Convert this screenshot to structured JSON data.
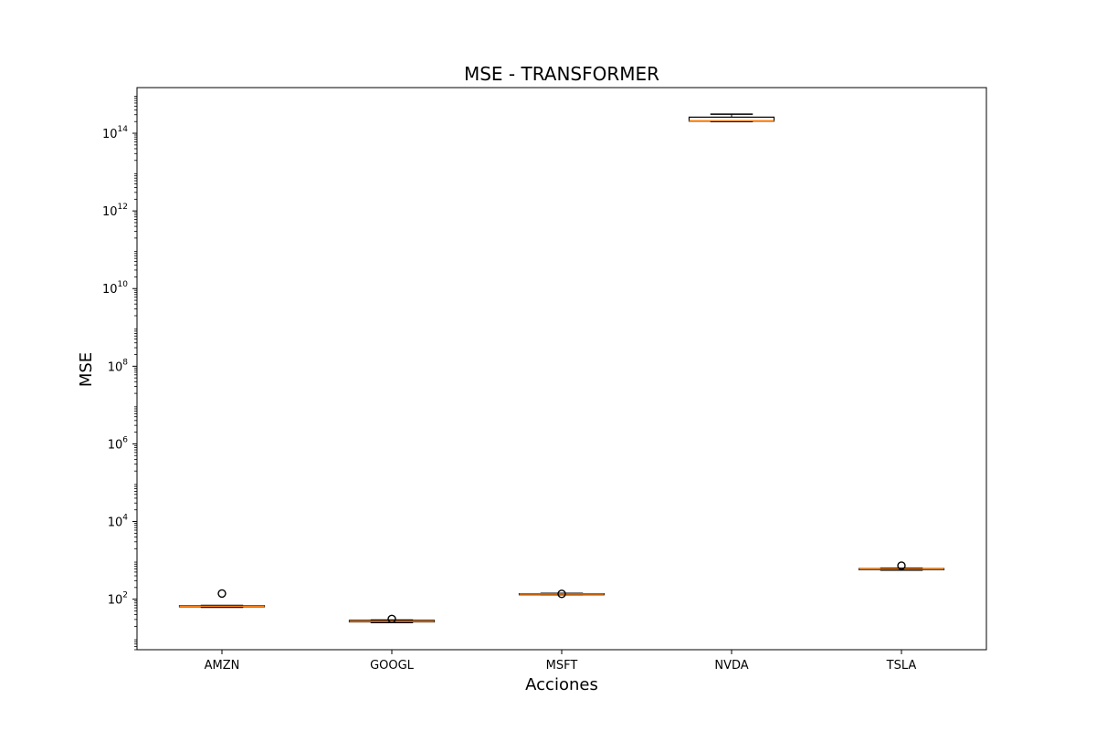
{
  "chart_data": {
    "type": "box",
    "title": "MSE - TRANSFORMER",
    "xlabel": "Acciones",
    "ylabel": "MSE",
    "yscale": "log",
    "ylim": [
      5,
      1500000000000000.0
    ],
    "grid": false,
    "yticks": [
      {
        "base": "10",
        "exp": "2",
        "value": 100.0
      },
      {
        "base": "10",
        "exp": "4",
        "value": 10000.0
      },
      {
        "base": "10",
        "exp": "6",
        "value": 1000000.0
      },
      {
        "base": "10",
        "exp": "8",
        "value": 100000000.0
      },
      {
        "base": "10",
        "exp": "10",
        "value": 10000000000.0
      },
      {
        "base": "10",
        "exp": "12",
        "value": 1000000000000.0
      },
      {
        "base": "10",
        "exp": "14",
        "value": 100000000000000.0
      }
    ],
    "categories": [
      "AMZN",
      "GOOGL",
      "MSFT",
      "NVDA",
      "TSLA"
    ],
    "boxes": [
      {
        "category": "AMZN",
        "whislo": 62,
        "q1": 64,
        "median": 66,
        "q3": 68,
        "whishi": 69,
        "fliers": [
          140
        ]
      },
      {
        "category": "GOOGL",
        "whislo": 25,
        "q1": 26,
        "median": 27,
        "q3": 28.5,
        "whishi": 29,
        "fliers": [
          31
        ]
      },
      {
        "category": "MSFT",
        "whislo": 132,
        "q1": 134,
        "median": 136,
        "q3": 139,
        "whishi": 141,
        "fliers": [
          137
        ]
      },
      {
        "category": "NVDA",
        "whislo": 200000000000000.0,
        "q1": 205000000000000.0,
        "median": 210000000000000.0,
        "q3": 260000000000000.0,
        "whishi": 310000000000000.0,
        "fliers": []
      },
      {
        "category": "TSLA",
        "whislo": 560,
        "q1": 580,
        "median": 600,
        "q3": 615,
        "whishi": 630,
        "fliers": [
          730
        ]
      }
    ],
    "colors": {
      "box": "#000000",
      "median": "#ff7f0e",
      "frame": "#000000"
    }
  }
}
